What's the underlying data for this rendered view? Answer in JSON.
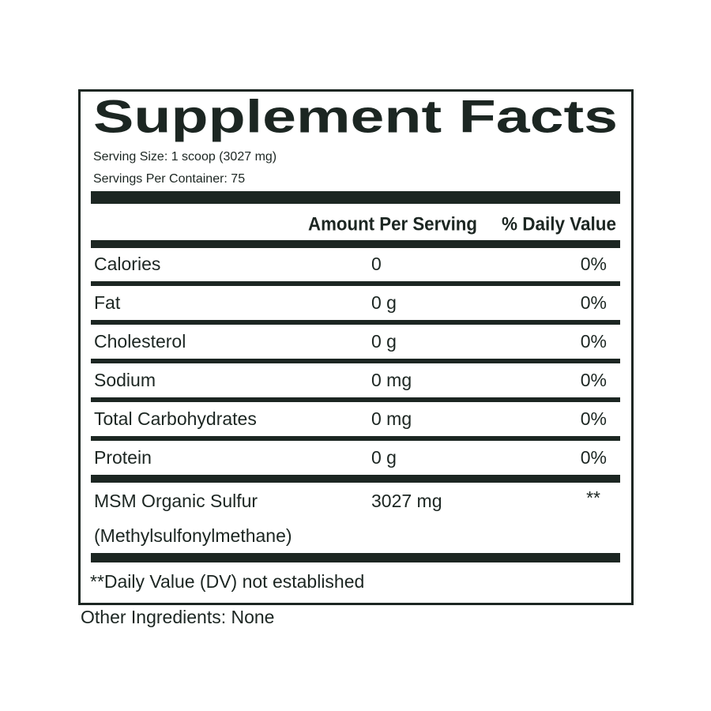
{
  "title": "Supplement Facts",
  "serving_size": "Serving Size: 1 scoop (3027 mg)",
  "servings_per_container": "Servings Per Container: 75",
  "table": {
    "header": [
      "Amount Per Serving",
      "% Daily Value"
    ],
    "rows": [
      [
        "Calories",
        "0",
        "0%"
      ],
      [
        "Fat",
        "0 g",
        "0%"
      ],
      [
        "Cholesterol",
        "0 g",
        "0%"
      ],
      [
        "Sodium",
        "0 mg",
        "0%"
      ],
      [
        "Total Carbohydrates",
        "0 mg",
        "0%"
      ],
      [
        "Protein",
        "0 g",
        "0%"
      ]
    ],
    "ingredient": {
      "name": [
        "MSM Organic Sulfur",
        "(Methylsulfonylmethane)"
      ],
      "amount": "3027 mg",
      "dv": "**"
    }
  },
  "footnote": "**Daily Value (DV) not established",
  "other_ingredients": "Other Ingredients: None"
}
